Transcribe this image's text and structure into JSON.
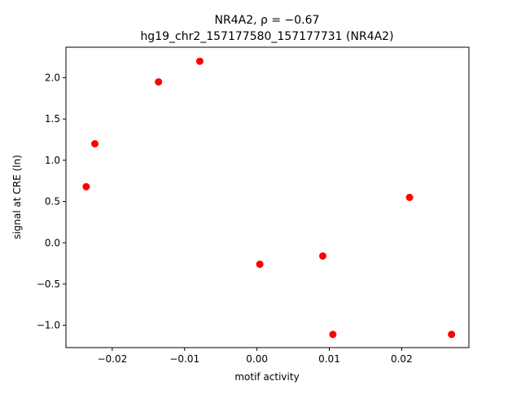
{
  "chart_data": {
    "type": "scatter",
    "title_line1": "NR4A2, ρ = −0.67",
    "title_line2": "hg19_chr2_157177580_157177731 (NR4A2)",
    "xlabel": "motif activity",
    "ylabel": "signal at CRE (ln)",
    "xlim": [
      -0.0264,
      0.0293
    ],
    "ylim": [
      -1.27,
      2.37
    ],
    "xticks": [
      -0.02,
      -0.01,
      0.0,
      0.01,
      0.02
    ],
    "xtick_labels": [
      "−0.02",
      "−0.01",
      "0.00",
      "0.01",
      "0.02"
    ],
    "yticks": [
      -1.0,
      -0.5,
      0.0,
      0.5,
      1.0,
      1.5,
      2.0
    ],
    "ytick_labels": [
      "−1.0",
      "−0.5",
      "0.0",
      "0.5",
      "1.0",
      "1.5",
      "2.0"
    ],
    "grid": false,
    "marker_color": "#ff0000",
    "points": [
      {
        "x": -0.0236,
        "y": 0.68
      },
      {
        "x": -0.0224,
        "y": 1.2
      },
      {
        "x": -0.0136,
        "y": 1.95
      },
      {
        "x": -0.0079,
        "y": 2.2
      },
      {
        "x": 0.0004,
        "y": -0.26
      },
      {
        "x": 0.0091,
        "y": -0.16
      },
      {
        "x": 0.0105,
        "y": -1.11
      },
      {
        "x": 0.0211,
        "y": 0.55
      },
      {
        "x": 0.0269,
        "y": -1.11
      }
    ]
  }
}
